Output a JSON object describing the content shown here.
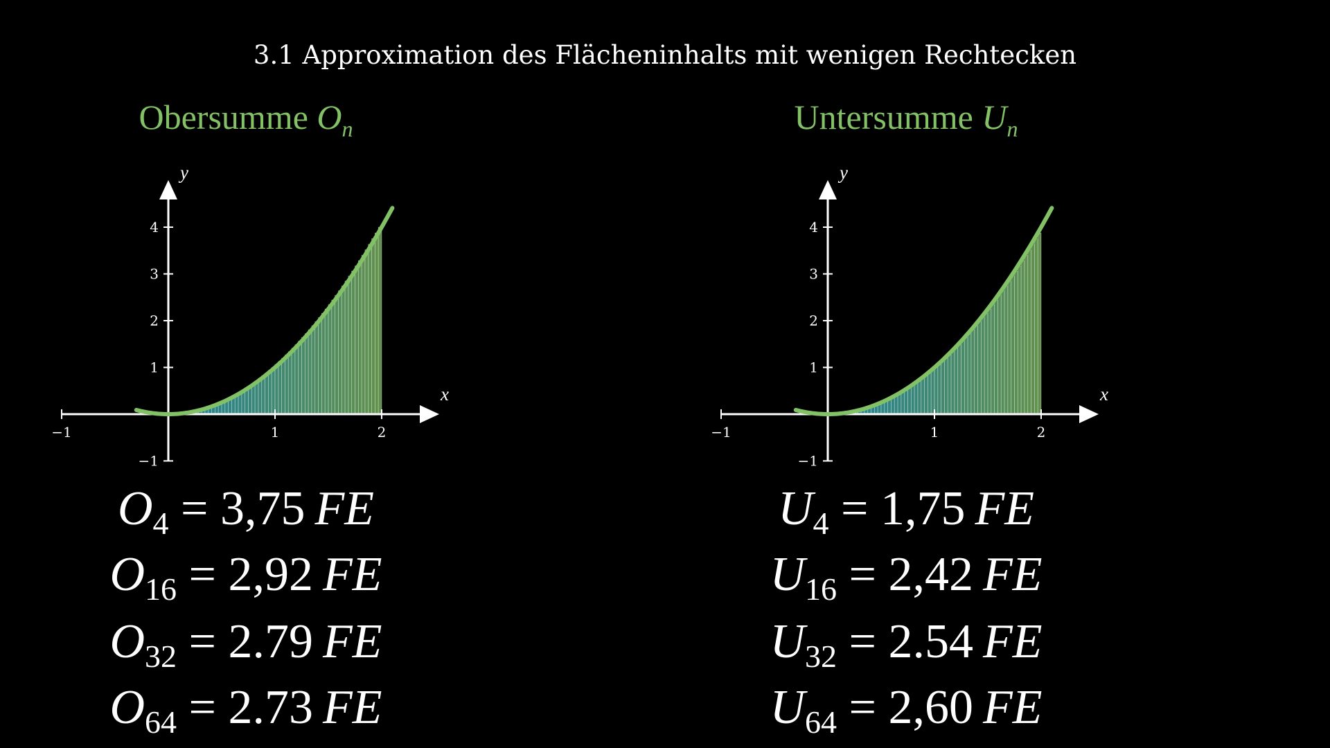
{
  "title": "3.1 Approximation des Flächeninhalts mit wenigen Rechtecken",
  "colors": {
    "curve": "#83c167",
    "background": "#000000",
    "bar_low": "#29abca",
    "bar_high": "#83c167"
  },
  "panels": [
    {
      "heading": "Obersumme",
      "symbol": "O",
      "subscript": "n",
      "results": [
        {
          "symbol": "O",
          "n": "4",
          "value": "3,75",
          "unit": "FE"
        },
        {
          "symbol": "O",
          "n": "16",
          "value": "2,92",
          "unit": "FE"
        },
        {
          "symbol": "O",
          "n": "32",
          "value": "2.79",
          "unit": "FE"
        },
        {
          "symbol": "O",
          "n": "64",
          "value": "2.73",
          "unit": "FE"
        }
      ]
    },
    {
      "heading": "Untersumme",
      "symbol": "U",
      "subscript": "n",
      "results": [
        {
          "symbol": "U",
          "n": "4",
          "value": "1,75",
          "unit": "FE"
        },
        {
          "symbol": "U",
          "n": "16",
          "value": "2,42",
          "unit": "FE"
        },
        {
          "symbol": "U",
          "n": "32",
          "value": "2.54",
          "unit": "FE"
        },
        {
          "symbol": "U",
          "n": "64",
          "value": "2,60",
          "unit": "FE"
        }
      ]
    }
  ],
  "chart_data": [
    {
      "type": "bar",
      "function": "x^2",
      "sum": "upper",
      "interval": [
        0,
        2
      ],
      "rectangles": 64,
      "xlabel": "x",
      "ylabel": "y",
      "xlim": [
        -1,
        2
      ],
      "ylim": [
        -1,
        4
      ],
      "xticks": [
        "−1",
        "1",
        "2"
      ],
      "yticks": [
        "−1",
        "1",
        "2",
        "3",
        "4"
      ],
      "curve_domain": [
        -0.3,
        2.1
      ]
    },
    {
      "type": "bar",
      "function": "x^2",
      "sum": "lower",
      "interval": [
        0,
        2
      ],
      "rectangles": 64,
      "xlabel": "x",
      "ylabel": "y",
      "xlim": [
        -1,
        2
      ],
      "ylim": [
        -1,
        4
      ],
      "xticks": [
        "−1",
        "1",
        "2"
      ],
      "yticks": [
        "−1",
        "1",
        "2",
        "3",
        "4"
      ],
      "curve_domain": [
        -0.3,
        2.1
      ]
    }
  ]
}
